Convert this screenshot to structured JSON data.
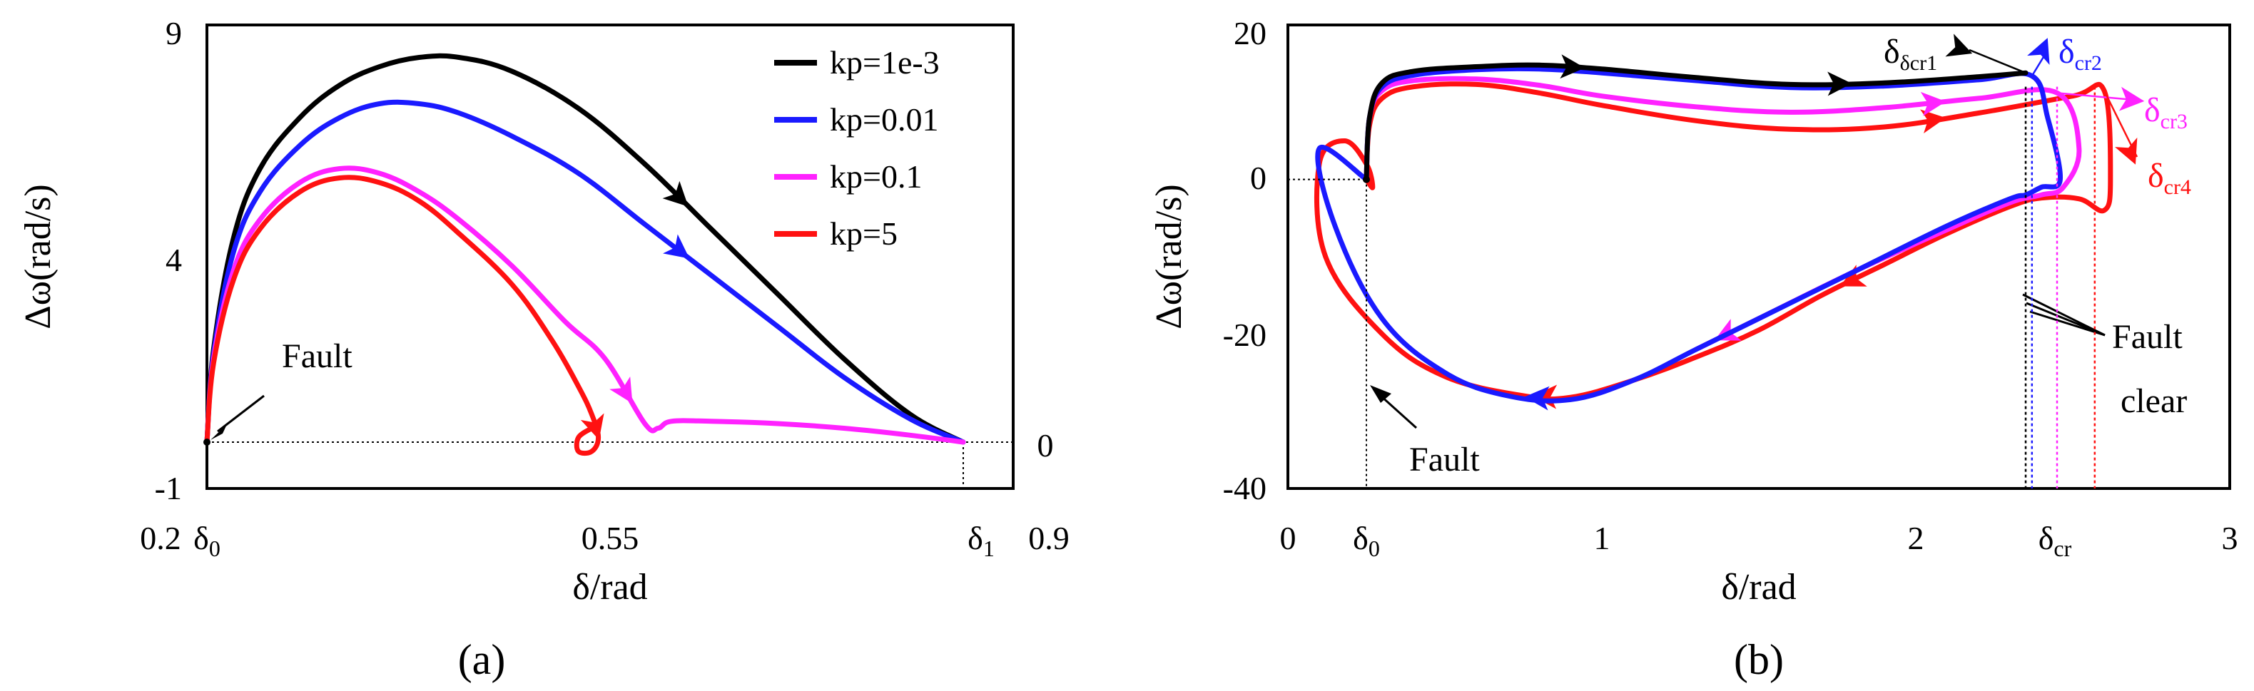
{
  "colors": {
    "black": "#000000",
    "blue": "#1a1aff",
    "magenta": "#ff22ff",
    "red": "#ff1111"
  },
  "chart_data": [
    {
      "panel": "(a)",
      "type": "line",
      "xlabel": "δ/rad",
      "ylabel": "Δω(rad/s)",
      "xlim": [
        0.2,
        0.9
      ],
      "ylim": [
        -1,
        9
      ],
      "xticks": [
        "0.2",
        "0.55",
        "0.9"
      ],
      "yticks": [
        "-1",
        "4",
        "9"
      ],
      "special_xticks": [
        "δ0",
        "δ1"
      ],
      "right_label": "0",
      "annotation": "Fault",
      "legend_position": "top-right",
      "series": [
        {
          "name": "kp=1e-3",
          "color": "#000000",
          "x": [
            0.27,
            0.275,
            0.29,
            0.31,
            0.34,
            0.37,
            0.4,
            0.43,
            0.46,
            0.5,
            0.55,
            0.6,
            0.65,
            0.7,
            0.75,
            0.8,
            0.84
          ],
          "y": [
            0,
            2.0,
            4.4,
            5.9,
            7.0,
            7.7,
            8.1,
            8.3,
            8.3,
            8.0,
            7.2,
            6.0,
            4.6,
            3.2,
            1.8,
            0.6,
            0
          ]
        },
        {
          "name": "kp=0.01",
          "color": "#1a1aff",
          "x": [
            0.27,
            0.275,
            0.29,
            0.31,
            0.34,
            0.37,
            0.4,
            0.43,
            0.46,
            0.5,
            0.55,
            0.6,
            0.65,
            0.7,
            0.75,
            0.8,
            0.84
          ],
          "y": [
            0,
            1.9,
            4.1,
            5.4,
            6.4,
            7.0,
            7.3,
            7.3,
            7.1,
            6.6,
            5.8,
            4.7,
            3.6,
            2.5,
            1.4,
            0.5,
            0
          ]
        },
        {
          "name": "kp=0.1",
          "color": "#ff22ff",
          "x": [
            0.27,
            0.275,
            0.29,
            0.31,
            0.34,
            0.37,
            0.4,
            0.43,
            0.46,
            0.5,
            0.54,
            0.57,
            0.6,
            0.61,
            0.62,
            0.65,
            0.7,
            0.75,
            0.8,
            0.84
          ],
          "y": [
            0,
            1.8,
            3.7,
            4.8,
            5.6,
            5.9,
            5.8,
            5.4,
            4.8,
            3.8,
            2.6,
            1.8,
            0.4,
            0.3,
            0.45,
            0.45,
            0.4,
            0.3,
            0.15,
            0
          ]
        },
        {
          "name": "kp=5",
          "color": "#ff1111",
          "x": [
            0.27,
            0.275,
            0.29,
            0.31,
            0.34,
            0.37,
            0.4,
            0.43,
            0.46,
            0.5,
            0.53,
            0.55,
            0.56,
            0.565,
            0.56,
            0.55,
            0.55,
            0.56
          ],
          "y": [
            0,
            1.7,
            3.5,
            4.6,
            5.4,
            5.7,
            5.6,
            5.2,
            4.5,
            3.4,
            2.2,
            1.2,
            0.6,
            0.1,
            -0.2,
            -0.2,
            0.1,
            0.3
          ]
        }
      ]
    },
    {
      "panel": "(b)",
      "type": "line",
      "xlabel": "δ/rad",
      "ylabel": "Δω(rad/s)",
      "xlim": [
        0,
        3
      ],
      "ylim": [
        -40,
        20
      ],
      "xticks": [
        "0",
        "1",
        "2",
        "3"
      ],
      "yticks": [
        "-40",
        "-20",
        "0",
        "20"
      ],
      "special_xticks": [
        "δ0",
        "δcr"
      ],
      "annotations": [
        "Fault",
        "Fault",
        "clear",
        "δcr1",
        "δcr2",
        "δcr3",
        "δcr4"
      ],
      "series": [
        {
          "name": "kp=1e-3",
          "color": "#000000",
          "x": [
            0.25,
            0.26,
            0.3,
            0.4,
            0.6,
            0.8,
            1.0,
            1.3,
            1.6,
            1.9,
            2.2,
            2.35
          ],
          "y": [
            0,
            8,
            12.5,
            14,
            14.6,
            14.8,
            14.3,
            13.2,
            12.3,
            12.5,
            13.3,
            13.8
          ]
        },
        {
          "name": "kp=0.01",
          "color": "#1a1aff",
          "x": [
            0.25,
            0.26,
            0.3,
            0.4,
            0.6,
            0.8,
            1.0,
            1.3,
            1.6,
            1.9,
            2.2,
            2.37,
            2.42,
            2.46,
            2.4,
            2.35,
            2.3,
            2.1,
            1.8,
            1.5,
            1.3,
            1.1,
            0.9,
            0.7,
            0.5,
            0.3,
            0.15,
            0.1,
            0.25
          ],
          "y": [
            0,
            8,
            12,
            13.5,
            14.2,
            14.3,
            13.8,
            12.8,
            11.9,
            12.1,
            12.9,
            13.4,
            8,
            0,
            -1,
            -2,
            -2.5,
            -6,
            -12,
            -18,
            -22,
            -26,
            -28.5,
            -28,
            -25,
            -18,
            -6,
            4,
            0
          ]
        },
        {
          "name": "kp=0.1",
          "color": "#ff22ff",
          "x": [
            0.25,
            0.26,
            0.3,
            0.4,
            0.6,
            0.8,
            1.0,
            1.3,
            1.6,
            1.9,
            2.2,
            2.45,
            2.52,
            2.47,
            2.4,
            2.3,
            2.1,
            1.8,
            1.5,
            1.3
          ],
          "y": [
            0,
            8,
            11.5,
            12.8,
            13,
            12.2,
            10.8,
            9.4,
            8.7,
            9.3,
            10.5,
            11.2,
            4,
            -1,
            -2,
            -3,
            -6.5,
            -12,
            -18,
            -22
          ]
        },
        {
          "name": "kp=5",
          "color": "#ff1111",
          "x": [
            0.25,
            0.26,
            0.3,
            0.4,
            0.6,
            0.8,
            1.0,
            1.3,
            1.6,
            1.9,
            2.2,
            2.5,
            2.6,
            2.62,
            2.6,
            2.52,
            2.4,
            2.3,
            2.1,
            1.9,
            1.7,
            1.5,
            1.3,
            1.1,
            0.9,
            0.75,
            0.5,
            0.3,
            0.12,
            0.1,
            0.18,
            0.25,
            0.27,
            0.25
          ],
          "y": [
            0,
            7,
            10.5,
            12,
            12.3,
            11.2,
            9.6,
            7.6,
            6.5,
            6.8,
            8.6,
            10.8,
            11.5,
            0,
            -4,
            -2.5,
            -2.4,
            -3.5,
            -7,
            -11,
            -15,
            -19.5,
            -23,
            -26,
            -28.2,
            -28,
            -25.5,
            -20,
            -10,
            2,
            5,
            2,
            -1,
            0
          ]
        }
      ]
    }
  ]
}
